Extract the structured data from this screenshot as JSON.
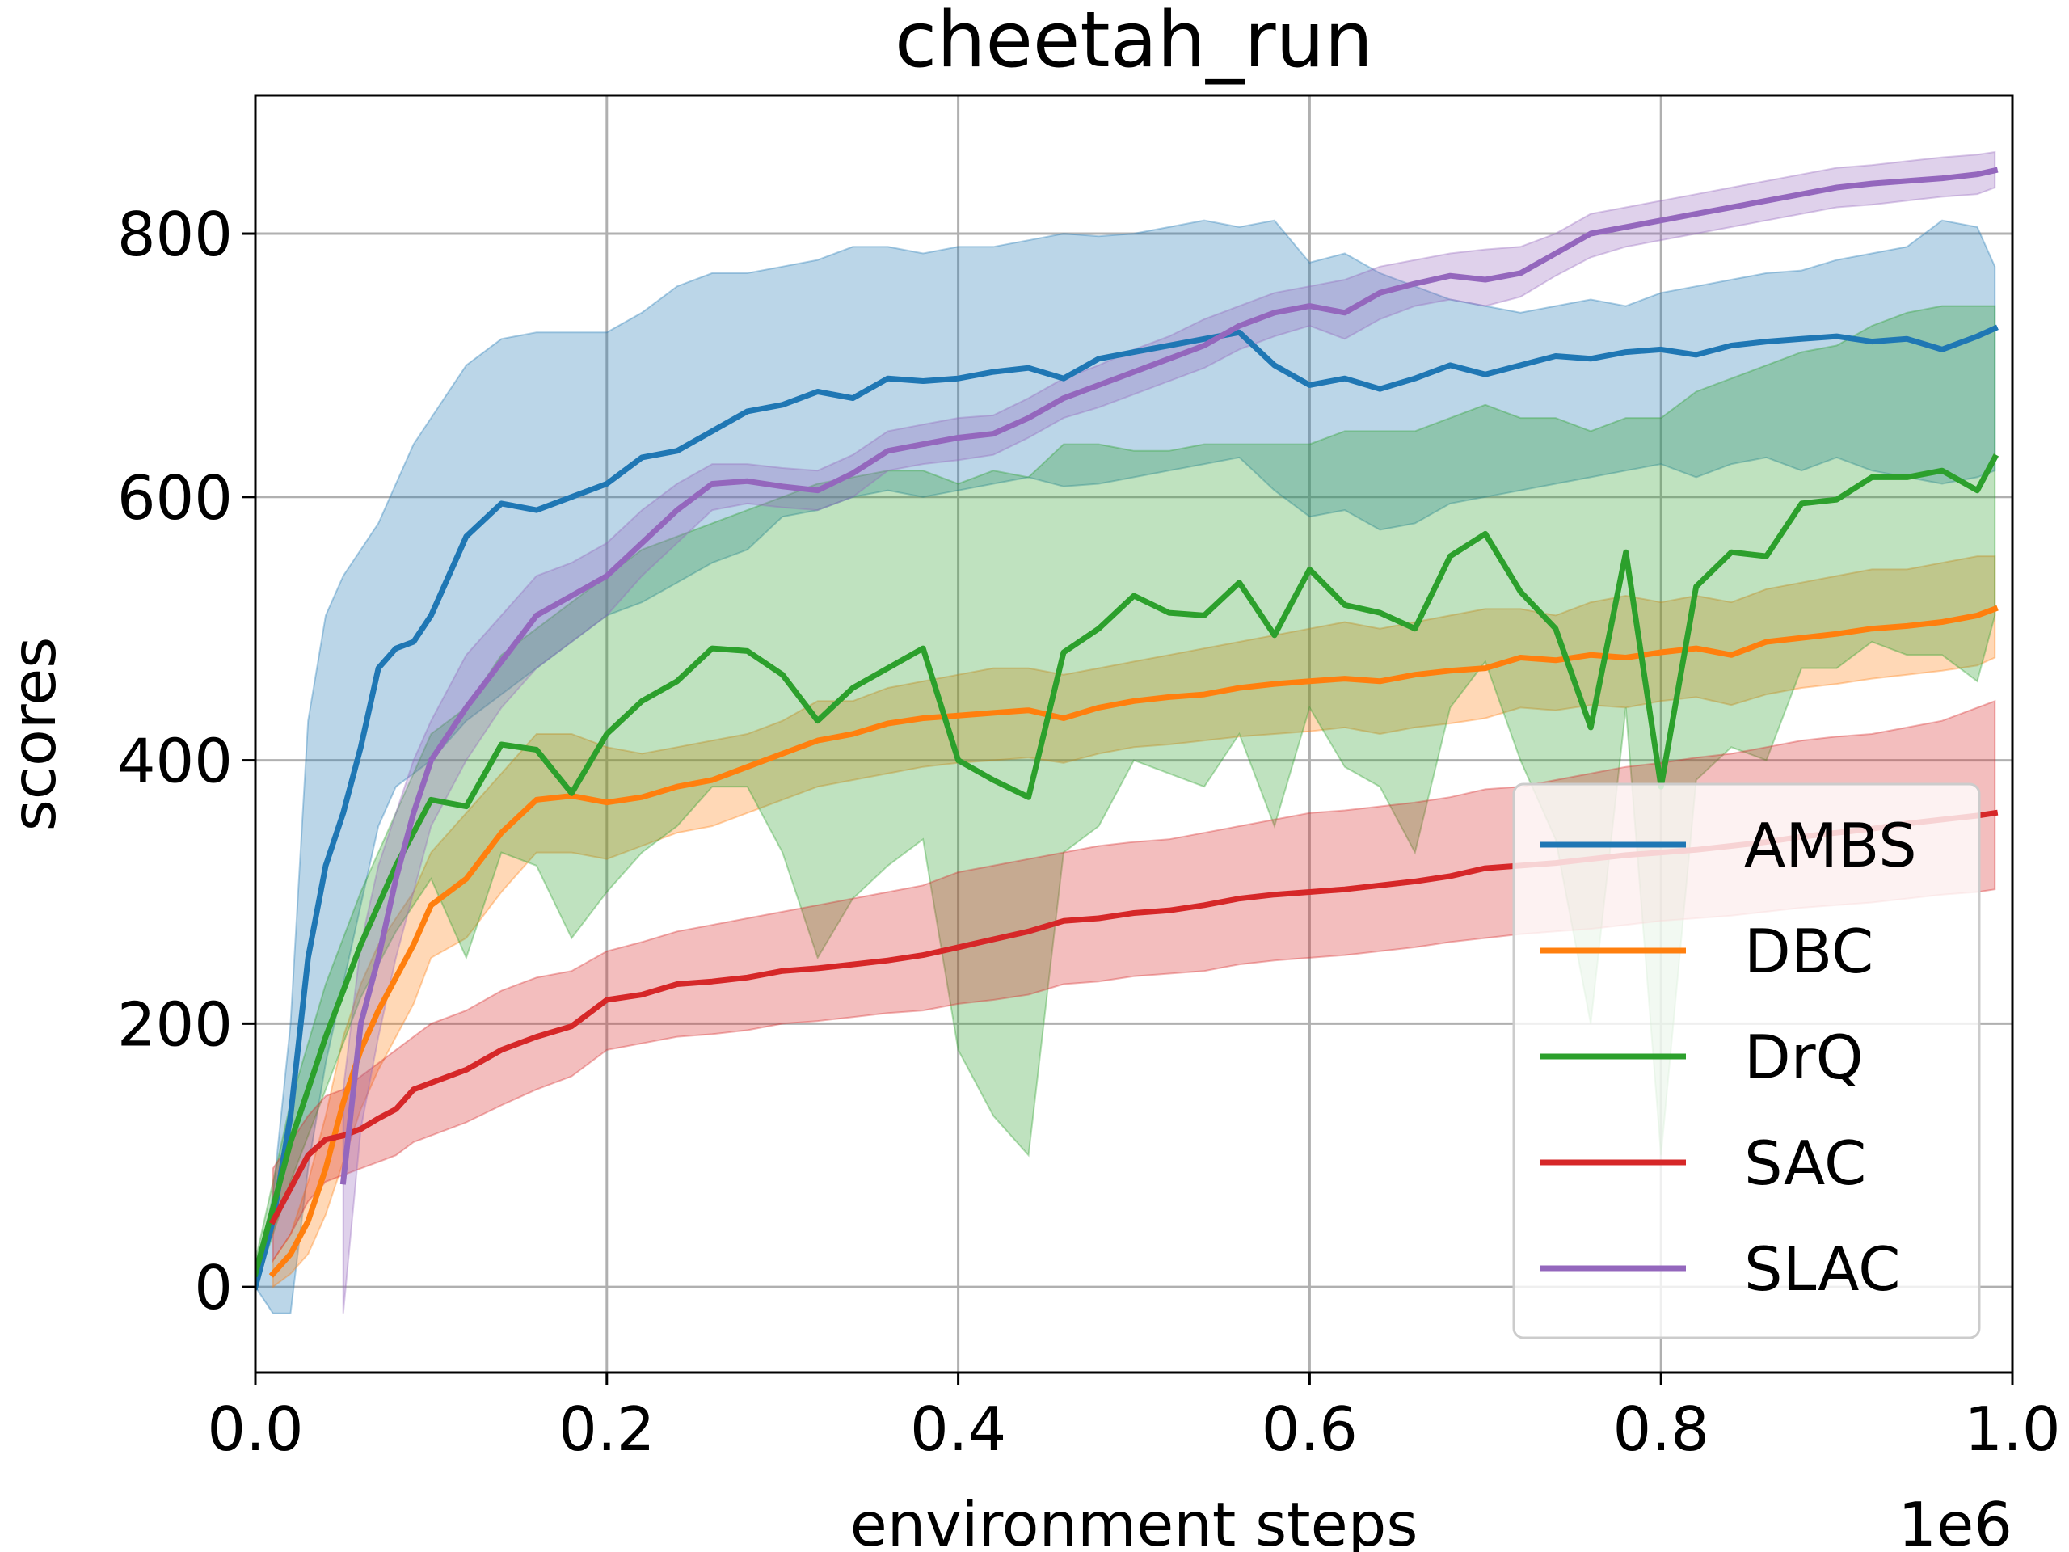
{
  "chart_data": {
    "type": "line",
    "title": "cheetah_run",
    "xlabel": "environment steps",
    "ylabel": "scores",
    "x_offset_label": "1e6",
    "xlim": [
      0.0,
      1.0
    ],
    "ylim": [
      -65,
      905
    ],
    "x_ticks": [
      0.0,
      0.2,
      0.4,
      0.6,
      0.8,
      1.0
    ],
    "x_tick_labels": [
      "0.0",
      "0.2",
      "0.4",
      "0.6",
      "0.8",
      "1.0"
    ],
    "y_ticks": [
      0,
      200,
      400,
      600,
      800
    ],
    "y_tick_labels": [
      "0",
      "200",
      "400",
      "600",
      "800"
    ],
    "grid": true,
    "legend_position": "lower-right",
    "series": [
      {
        "name": "AMBS",
        "color": "#1f77b4",
        "x": [
          0.0,
          0.01,
          0.02,
          0.03,
          0.04,
          0.05,
          0.06,
          0.07,
          0.08,
          0.09,
          0.1,
          0.12,
          0.14,
          0.16,
          0.18,
          0.2,
          0.22,
          0.24,
          0.26,
          0.28,
          0.3,
          0.32,
          0.34,
          0.36,
          0.38,
          0.4,
          0.42,
          0.44,
          0.46,
          0.48,
          0.5,
          0.52,
          0.54,
          0.56,
          0.58,
          0.6,
          0.62,
          0.64,
          0.66,
          0.68,
          0.7,
          0.72,
          0.74,
          0.76,
          0.78,
          0.8,
          0.82,
          0.84,
          0.86,
          0.88,
          0.9,
          0.92,
          0.94,
          0.96,
          0.98,
          0.99
        ],
        "y": [
          0,
          50,
          130,
          250,
          320,
          360,
          410,
          470,
          485,
          490,
          510,
          570,
          595,
          590,
          600,
          610,
          630,
          635,
          650,
          665,
          670,
          680,
          675,
          690,
          688,
          690,
          695,
          698,
          690,
          705,
          710,
          715,
          720,
          725,
          700,
          685,
          690,
          682,
          690,
          700,
          693,
          700,
          707,
          705,
          710,
          712,
          708,
          715,
          718,
          720,
          722,
          718,
          720,
          712,
          722,
          728
        ],
        "upper": [
          0,
          70,
          200,
          430,
          510,
          540,
          560,
          580,
          610,
          640,
          660,
          700,
          720,
          725,
          725,
          725,
          740,
          760,
          770,
          770,
          775,
          780,
          790,
          790,
          785,
          790,
          790,
          795,
          800,
          798,
          800,
          805,
          810,
          805,
          810,
          778,
          785,
          770,
          760,
          750,
          745,
          740,
          745,
          750,
          745,
          755,
          760,
          765,
          770,
          772,
          780,
          785,
          790,
          810,
          805,
          775
        ],
        "lower": [
          0,
          -20,
          -20,
          90,
          170,
          230,
          290,
          350,
          380,
          390,
          400,
          430,
          450,
          470,
          490,
          510,
          520,
          535,
          550,
          560,
          585,
          590,
          600,
          605,
          600,
          605,
          610,
          615,
          608,
          610,
          615,
          620,
          625,
          630,
          605,
          585,
          590,
          575,
          580,
          595,
          600,
          605,
          610,
          615,
          620,
          625,
          615,
          625,
          630,
          620,
          630,
          620,
          615,
          610,
          615,
          620
        ]
      },
      {
        "name": "DBC",
        "color": "#ff7f0e",
        "x": [
          0.01,
          0.02,
          0.03,
          0.04,
          0.05,
          0.06,
          0.07,
          0.08,
          0.09,
          0.1,
          0.12,
          0.14,
          0.16,
          0.18,
          0.2,
          0.22,
          0.24,
          0.26,
          0.28,
          0.3,
          0.32,
          0.34,
          0.36,
          0.38,
          0.4,
          0.42,
          0.44,
          0.46,
          0.48,
          0.5,
          0.52,
          0.54,
          0.56,
          0.58,
          0.6,
          0.62,
          0.64,
          0.66,
          0.68,
          0.7,
          0.72,
          0.74,
          0.76,
          0.78,
          0.8,
          0.82,
          0.84,
          0.86,
          0.88,
          0.9,
          0.92,
          0.94,
          0.96,
          0.98,
          0.99
        ],
        "y": [
          10,
          25,
          50,
          90,
          140,
          180,
          210,
          235,
          260,
          290,
          310,
          345,
          370,
          373,
          368,
          372,
          380,
          385,
          395,
          405,
          415,
          420,
          428,
          432,
          434,
          436,
          438,
          432,
          440,
          445,
          448,
          450,
          455,
          458,
          460,
          462,
          460,
          465,
          468,
          470,
          478,
          476,
          480,
          478,
          482,
          485,
          480,
          490,
          493,
          496,
          500,
          502,
          505,
          510,
          515
        ],
        "upper": [
          20,
          40,
          80,
          130,
          190,
          230,
          260,
          280,
          300,
          330,
          360,
          390,
          420,
          420,
          410,
          405,
          410,
          415,
          420,
          430,
          445,
          445,
          455,
          460,
          465,
          470,
          470,
          465,
          470,
          475,
          480,
          485,
          490,
          495,
          500,
          505,
          500,
          505,
          510,
          515,
          515,
          510,
          520,
          525,
          520,
          525,
          520,
          530,
          535,
          540,
          545,
          545,
          550,
          555,
          555
        ],
        "lower": [
          0,
          10,
          25,
          55,
          95,
          135,
          165,
          190,
          215,
          250,
          265,
          300,
          330,
          330,
          325,
          335,
          345,
          350,
          360,
          370,
          380,
          385,
          390,
          395,
          398,
          400,
          402,
          398,
          405,
          410,
          412,
          415,
          418,
          420,
          422,
          425,
          420,
          425,
          428,
          432,
          440,
          438,
          442,
          440,
          445,
          448,
          442,
          450,
          455,
          458,
          462,
          465,
          468,
          472,
          478
        ]
      },
      {
        "name": "DrQ",
        "color": "#2ca02c",
        "x": [
          0.0,
          0.02,
          0.04,
          0.06,
          0.08,
          0.1,
          0.12,
          0.14,
          0.16,
          0.18,
          0.2,
          0.22,
          0.24,
          0.26,
          0.28,
          0.3,
          0.32,
          0.34,
          0.36,
          0.38,
          0.4,
          0.42,
          0.44,
          0.46,
          0.48,
          0.5,
          0.52,
          0.54,
          0.56,
          0.58,
          0.6,
          0.62,
          0.64,
          0.66,
          0.68,
          0.7,
          0.72,
          0.74,
          0.76,
          0.78,
          0.8,
          0.82,
          0.84,
          0.86,
          0.88,
          0.9,
          0.92,
          0.94,
          0.96,
          0.98,
          0.99
        ],
        "y": [
          10,
          110,
          190,
          260,
          320,
          370,
          365,
          412,
          408,
          375,
          420,
          445,
          460,
          485,
          483,
          465,
          430,
          455,
          470,
          485,
          400,
          385,
          372,
          482,
          500,
          525,
          512,
          510,
          535,
          495,
          545,
          518,
          512,
          500,
          555,
          572,
          528,
          500,
          425,
          558,
          380,
          532,
          558,
          555,
          595,
          598,
          615,
          615,
          620,
          605,
          630
        ],
        "upper": [
          20,
          140,
          230,
          300,
          360,
          420,
          440,
          480,
          500,
          520,
          540,
          560,
          570,
          580,
          590,
          600,
          610,
          615,
          620,
          620,
          610,
          620,
          615,
          640,
          640,
          635,
          635,
          640,
          640,
          640,
          640,
          650,
          650,
          650,
          660,
          670,
          660,
          660,
          650,
          660,
          660,
          680,
          690,
          700,
          710,
          715,
          730,
          740,
          745,
          745,
          745
        ],
        "lower": [
          0,
          80,
          150,
          220,
          270,
          310,
          250,
          330,
          320,
          265,
          300,
          330,
          350,
          380,
          380,
          330,
          250,
          295,
          320,
          340,
          180,
          130,
          100,
          330,
          350,
          400,
          390,
          380,
          420,
          350,
          440,
          395,
          380,
          330,
          440,
          475,
          400,
          340,
          200,
          440,
          100,
          385,
          410,
          400,
          470,
          470,
          490,
          480,
          480,
          460,
          510
        ]
      },
      {
        "name": "SAC",
        "color": "#d62728",
        "x": [
          0.01,
          0.02,
          0.03,
          0.04,
          0.05,
          0.06,
          0.07,
          0.08,
          0.09,
          0.1,
          0.12,
          0.14,
          0.16,
          0.18,
          0.2,
          0.22,
          0.24,
          0.26,
          0.28,
          0.3,
          0.32,
          0.34,
          0.36,
          0.38,
          0.4,
          0.42,
          0.44,
          0.46,
          0.48,
          0.5,
          0.52,
          0.54,
          0.56,
          0.58,
          0.6,
          0.62,
          0.64,
          0.66,
          0.68,
          0.7,
          0.72,
          0.74,
          0.76,
          0.78,
          0.8,
          0.82,
          0.84,
          0.86,
          0.88,
          0.9,
          0.92,
          0.94,
          0.96,
          0.98,
          0.99
        ],
        "y": [
          50,
          75,
          100,
          112,
          115,
          120,
          128,
          135,
          150,
          155,
          165,
          180,
          190,
          198,
          218,
          222,
          230,
          232,
          235,
          240,
          242,
          245,
          248,
          252,
          258,
          264,
          270,
          278,
          280,
          284,
          286,
          290,
          295,
          298,
          300,
          302,
          305,
          308,
          312,
          318,
          320,
          322,
          325,
          328,
          330,
          332,
          335,
          338,
          342,
          345,
          348,
          352,
          355,
          358,
          360
        ],
        "upper": [
          90,
          110,
          130,
          145,
          150,
          160,
          170,
          180,
          190,
          200,
          210,
          225,
          235,
          240,
          255,
          262,
          270,
          275,
          280,
          285,
          290,
          295,
          300,
          305,
          315,
          320,
          325,
          330,
          335,
          338,
          340,
          345,
          350,
          355,
          360,
          362,
          365,
          368,
          372,
          378,
          380,
          385,
          390,
          395,
          398,
          402,
          405,
          410,
          415,
          418,
          420,
          425,
          430,
          440,
          445
        ],
        "lower": [
          20,
          40,
          65,
          80,
          85,
          90,
          95,
          100,
          110,
          115,
          125,
          138,
          150,
          160,
          180,
          185,
          190,
          192,
          195,
          200,
          202,
          205,
          208,
          210,
          215,
          218,
          222,
          230,
          232,
          236,
          238,
          240,
          245,
          248,
          250,
          252,
          255,
          258,
          262,
          265,
          268,
          270,
          272,
          275,
          278,
          280,
          282,
          285,
          288,
          290,
          292,
          295,
          298,
          300,
          302
        ]
      },
      {
        "name": "SLAC",
        "color": "#9467bd",
        "x": [
          0.05,
          0.06,
          0.07,
          0.08,
          0.09,
          0.1,
          0.12,
          0.14,
          0.16,
          0.18,
          0.2,
          0.22,
          0.24,
          0.26,
          0.28,
          0.3,
          0.32,
          0.34,
          0.36,
          0.38,
          0.4,
          0.42,
          0.44,
          0.46,
          0.48,
          0.5,
          0.52,
          0.54,
          0.56,
          0.58,
          0.6,
          0.62,
          0.64,
          0.66,
          0.68,
          0.7,
          0.72,
          0.74,
          0.76,
          0.78,
          0.8,
          0.82,
          0.84,
          0.86,
          0.88,
          0.9,
          0.92,
          0.94,
          0.96,
          0.98,
          0.99
        ],
        "y": [
          80,
          200,
          250,
          310,
          360,
          400,
          440,
          475,
          510,
          525,
          540,
          565,
          590,
          610,
          612,
          608,
          605,
          618,
          635,
          640,
          645,
          648,
          660,
          675,
          685,
          695,
          705,
          715,
          730,
          740,
          745,
          740,
          755,
          762,
          768,
          765,
          770,
          785,
          800,
          805,
          810,
          815,
          820,
          825,
          830,
          835,
          838,
          840,
          842,
          845,
          848
        ],
        "upper": [
          150,
          260,
          320,
          360,
          400,
          430,
          480,
          510,
          540,
          550,
          565,
          590,
          610,
          625,
          625,
          622,
          620,
          632,
          650,
          655,
          660,
          662,
          675,
          690,
          700,
          712,
          722,
          735,
          745,
          755,
          760,
          765,
          775,
          780,
          785,
          788,
          790,
          800,
          815,
          820,
          825,
          830,
          835,
          840,
          845,
          850,
          852,
          855,
          858,
          860,
          862
        ],
        "lower": [
          -20,
          120,
          190,
          250,
          300,
          350,
          400,
          440,
          470,
          490,
          510,
          540,
          565,
          590,
          595,
          592,
          590,
          600,
          620,
          625,
          628,
          632,
          645,
          660,
          668,
          678,
          688,
          698,
          712,
          722,
          730,
          720,
          735,
          745,
          750,
          745,
          752,
          768,
          782,
          790,
          795,
          800,
          805,
          810,
          815,
          820,
          822,
          825,
          828,
          830,
          835
        ]
      }
    ]
  }
}
